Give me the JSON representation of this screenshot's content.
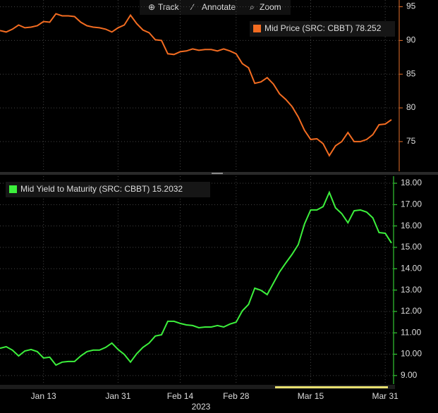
{
  "toolbar": {
    "buttons": [
      "Track",
      "Annotate",
      "Zoom"
    ]
  },
  "chart_data": [
    {
      "type": "line",
      "ylim": [
        70.6,
        96
      ],
      "yticks": [
        75,
        80,
        85,
        90,
        95
      ],
      "grid": true,
      "axis_color": "#e8702a",
      "series": [
        {
          "name": "Mid Price (SRC: CBBT)",
          "color": "#f36c21",
          "values": [
            91.46,
            91.25,
            91.67,
            92.29,
            91.88,
            91.98,
            92.19,
            92.81,
            92.71,
            93.96,
            93.65,
            93.65,
            93.54,
            92.71,
            92.19,
            91.98,
            91.88,
            91.67,
            91.25,
            91.88,
            92.29,
            93.75,
            92.5,
            91.56,
            91.15,
            90.1,
            90.0,
            88.02,
            87.92,
            88.33,
            88.44,
            88.75,
            88.54,
            88.65,
            88.65,
            88.44,
            88.75,
            88.44,
            88.02,
            86.56,
            85.94,
            83.65,
            83.85,
            84.48,
            83.54,
            82.08,
            81.25,
            80.21,
            78.65,
            76.67,
            75.31,
            75.42,
            74.69,
            72.92,
            74.38,
            75.0,
            76.35,
            75.0,
            75.0,
            75.31,
            76.04,
            77.5,
            77.6,
            78.252
          ]
        }
      ]
    },
    {
      "type": "line",
      "ylim": [
        8.6,
        18.33
      ],
      "grid": true,
      "axis_color": "#3cf03c",
      "xlabel": "2023",
      "yticks": [
        {
          "value": 9,
          "label": "9.00"
        },
        {
          "value": 10,
          "label": "10.00"
        },
        {
          "value": 11,
          "label": "11.00"
        },
        {
          "value": 12,
          "label": "12.00"
        },
        {
          "value": 13,
          "label": "13.00"
        },
        {
          "value": 14,
          "label": "14.00"
        },
        {
          "value": 15,
          "label": "15.00"
        },
        {
          "value": 16,
          "label": "16.00"
        },
        {
          "value": 17,
          "label": "17.00"
        },
        {
          "value": 18,
          "label": "18.00"
        }
      ],
      "categories": [
        null,
        null,
        null,
        null,
        null,
        null,
        null,
        "Jan 13",
        null,
        null,
        null,
        null,
        null,
        null,
        null,
        null,
        null,
        null,
        null,
        "Jan 31",
        null,
        null,
        null,
        null,
        null,
        null,
        null,
        null,
        null,
        "Feb 14",
        null,
        null,
        null,
        null,
        null,
        null,
        null,
        null,
        "Feb 28",
        null,
        null,
        null,
        null,
        null,
        null,
        null,
        null,
        null,
        null,
        null,
        "Mar 15",
        null,
        null,
        null,
        null,
        null,
        null,
        null,
        null,
        null,
        null,
        null,
        "Mar 31",
        null
      ],
      "series": [
        {
          "name": "Mid Yield to Maturity (SRC: CBBT)",
          "color": "#3cf03c",
          "values": [
            10.28,
            10.35,
            10.19,
            9.92,
            10.15,
            10.22,
            10.12,
            9.82,
            9.86,
            9.49,
            9.63,
            9.66,
            9.66,
            9.92,
            10.12,
            10.19,
            10.19,
            10.32,
            10.52,
            10.22,
            9.99,
            9.63,
            10.02,
            10.32,
            10.52,
            10.85,
            10.91,
            11.54,
            11.54,
            11.44,
            11.37,
            11.34,
            11.24,
            11.27,
            11.27,
            11.34,
            11.27,
            11.41,
            11.5,
            12.03,
            12.33,
            13.09,
            12.99,
            12.79,
            13.32,
            13.85,
            14.27,
            14.67,
            15.13,
            16.09,
            16.75,
            16.75,
            16.91,
            17.57,
            16.85,
            16.58,
            16.15,
            16.71,
            16.75,
            16.65,
            16.38,
            15.69,
            15.66,
            15.2032
          ]
        }
      ]
    }
  ]
}
